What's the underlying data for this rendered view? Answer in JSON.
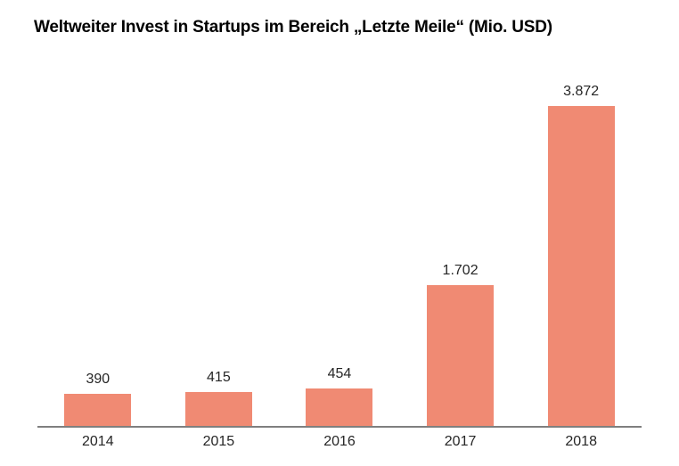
{
  "chart_data": {
    "type": "bar",
    "title": "Weltweiter Invest in Startups im Bereich „Letzte Meile“ (Mio. USD)",
    "categories": [
      "2014",
      "2015",
      "2016",
      "2017",
      "2018"
    ],
    "values": [
      390,
      415,
      454,
      1702,
      3872
    ],
    "value_labels": [
      "390",
      "415",
      "454",
      "1.702",
      "3.872"
    ],
    "xlabel": "",
    "ylabel": "",
    "ylim": [
      0,
      3872
    ],
    "grid": false,
    "legend": "none",
    "bar_color": "#F08A73",
    "axis_line_color": "#7F7F7F",
    "label_color": "#262626",
    "title_color": "#000000"
  }
}
